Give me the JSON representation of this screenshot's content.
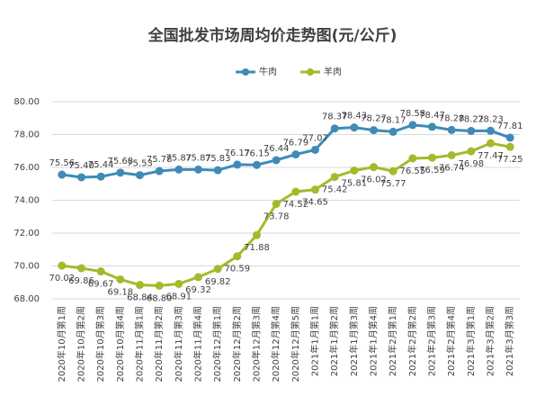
{
  "chart_data": {
    "type": "line",
    "title": "全国批发市场周均价走势图(元/公斤)",
    "categories": [
      "2020年10月第1周",
      "2020年10月第2周",
      "2020年10月第3周",
      "2020年10月第4周",
      "2020年11月第1周",
      "2020年11月第2周",
      "2020年11月第3周",
      "2020年11月第4周",
      "2020年12月第1周",
      "2020年12月第2周",
      "2020年12月第3周",
      "2020年12月第4周",
      "2020年12月第5周",
      "2021年1月第1周",
      "2021年1月第2周",
      "2021年1月第3周",
      "2021年1月第4周",
      "2021年2月第1周",
      "2021年2月第2周",
      "2021年2月第3周",
      "2021年2月第4周",
      "2021年3月第1周",
      "2021年3月第2周",
      "2021年3月第3周"
    ],
    "series": [
      {
        "name": "牛肉",
        "color": "#3f8bb6",
        "values": [
          75.56,
          75.4,
          75.44,
          75.68,
          75.53,
          75.78,
          75.87,
          75.87,
          75.83,
          76.17,
          76.15,
          76.44,
          76.79,
          77.07,
          78.37,
          78.43,
          78.27,
          78.17,
          78.58,
          78.47,
          78.28,
          78.22,
          78.23,
          77.81
        ],
        "value_labels": [
          "75.56",
          "75.40",
          "75.44",
          "75.68",
          "75.53",
          "75.78",
          "75.87",
          "75.87",
          "75.83",
          "76.17",
          "76.15",
          "76.44",
          "76.79",
          "77.07",
          "78.37",
          "78.43",
          "78.27",
          "78.17",
          "78.58",
          "78.47",
          "78.28",
          "78.22",
          "78.23",
          "77.81"
        ]
      },
      {
        "name": "羊肉",
        "color": "#a6b92b",
        "values": [
          70.02,
          69.86,
          69.67,
          69.18,
          68.84,
          68.8,
          68.91,
          69.32,
          69.82,
          70.59,
          71.88,
          73.78,
          74.52,
          74.65,
          75.42,
          75.81,
          76.02,
          75.77,
          76.55,
          76.59,
          76.74,
          76.98,
          77.47,
          77.25
        ],
        "value_labels": [
          "70.02",
          "69.86",
          "69.67",
          "69.18",
          "68.84",
          "68.80",
          "68.91",
          "69.32",
          "69.82",
          "70.59",
          "71.88",
          "73.78",
          "74.52",
          "74.65",
          "75.42",
          "75.81",
          "76.02",
          "75.77",
          "76.55",
          "76.59",
          "76.74",
          "76.98",
          "77.47",
          "77.25"
        ]
      }
    ],
    "ylim": [
      68,
      80
    ],
    "yticks": [
      {
        "value": 68,
        "label": "68.00"
      },
      {
        "value": 70,
        "label": "70.00"
      },
      {
        "value": 72,
        "label": "72.00"
      },
      {
        "value": 74,
        "label": "74.00"
      },
      {
        "value": 76,
        "label": "76.00"
      },
      {
        "value": 78,
        "label": "78.00"
      },
      {
        "value": 80,
        "label": "80.00"
      }
    ],
    "grid": true,
    "legend": "top"
  }
}
